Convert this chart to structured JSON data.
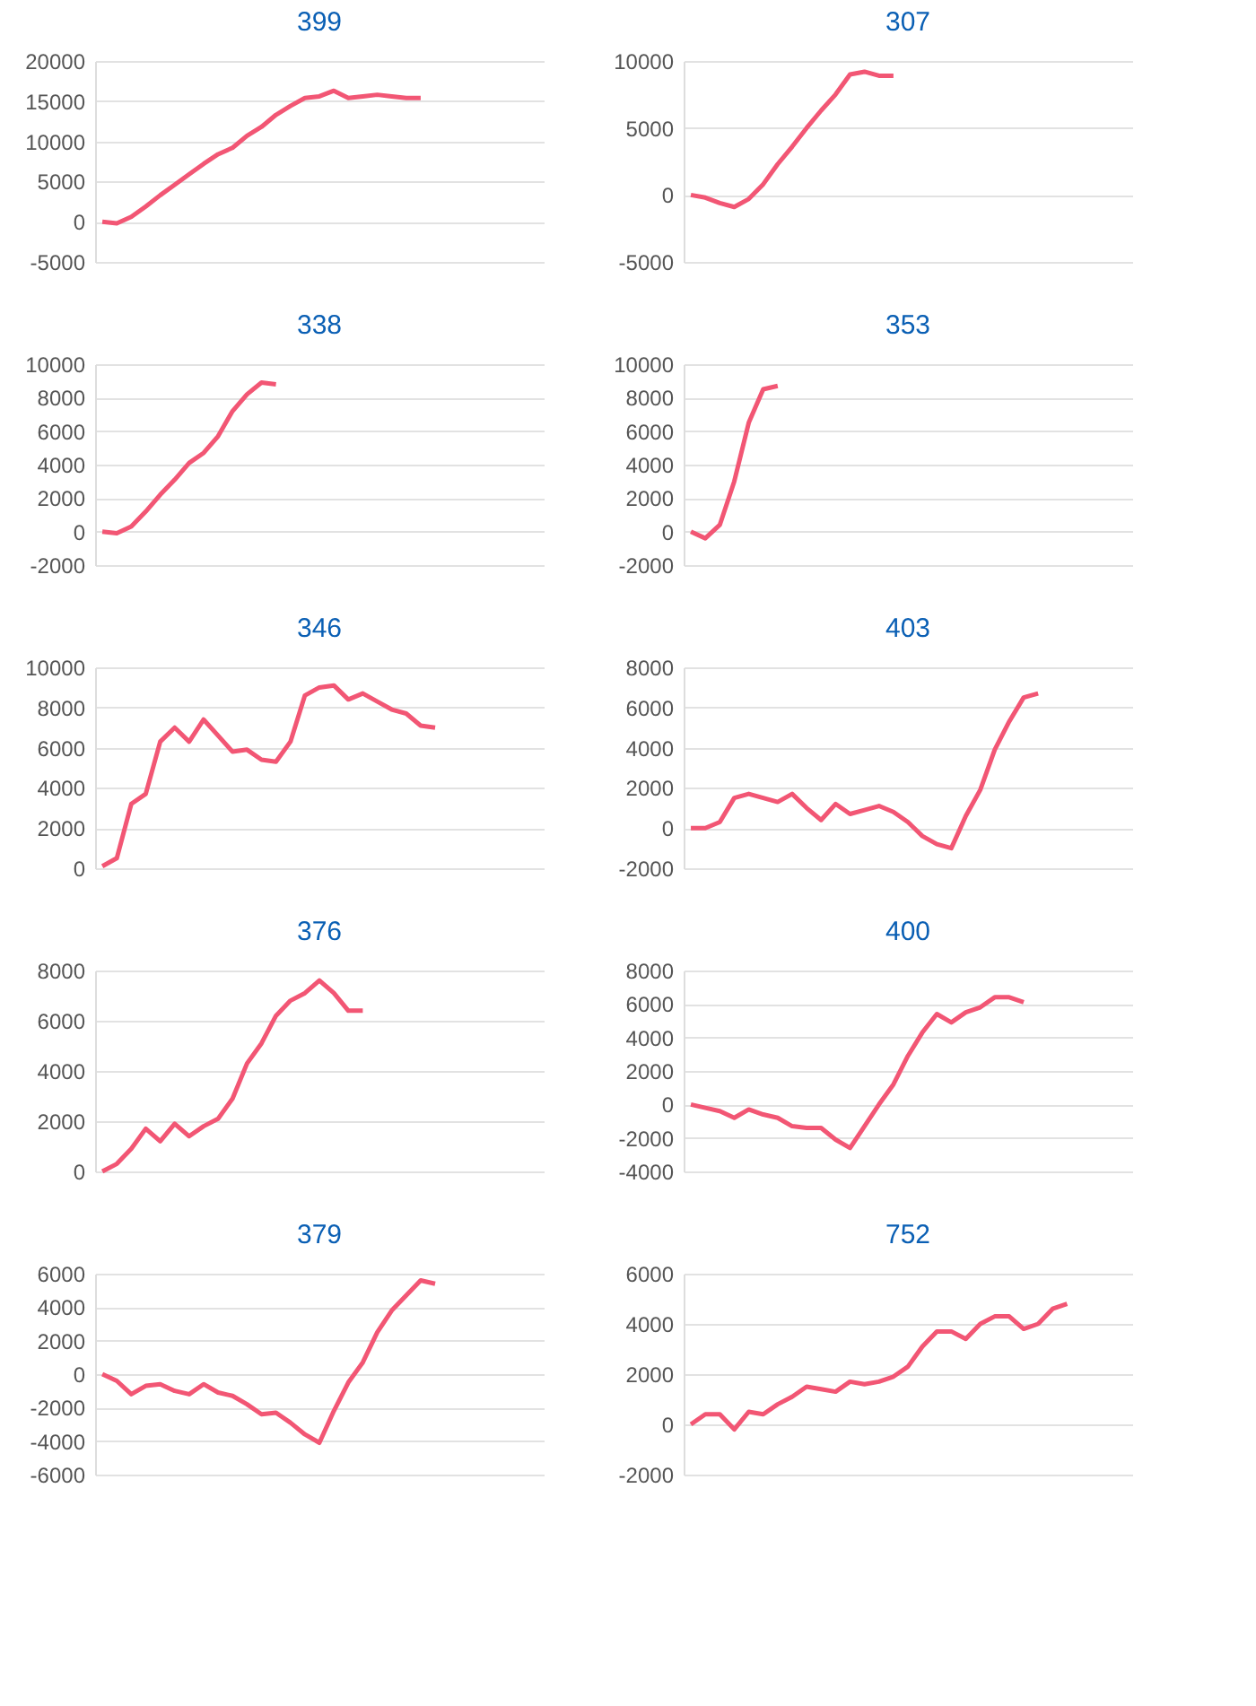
{
  "chart_data": [
    {
      "type": "line",
      "title": "399",
      "color": "#f25674",
      "grid": "y",
      "tick_labels": "y",
      "ylim": [
        -5000,
        20000
      ],
      "yticks": [
        -5000,
        0,
        5000,
        10000,
        15000,
        20000
      ],
      "categories": [
        null,
        null,
        null,
        null,
        null,
        null,
        null,
        null,
        null,
        null,
        null,
        null,
        null,
        null,
        null,
        null,
        null,
        null,
        null,
        null,
        null,
        null,
        null,
        null,
        null,
        null,
        null,
        null,
        null,
        null,
        null
      ],
      "values": [
        0,
        -200,
        600,
        1900,
        3300,
        4600,
        5900,
        7200,
        8400,
        9200,
        10700,
        11800,
        13300,
        14400,
        15400,
        15600,
        16300,
        15400,
        15600,
        15800,
        15600,
        15400,
        15400,
        null,
        null,
        null,
        null,
        null,
        null,
        null,
        null
      ]
    },
    {
      "type": "line",
      "title": "307",
      "color": "#f25674",
      "grid": "y",
      "tick_labels": "y",
      "ylim": [
        -5000,
        10000
      ],
      "yticks": [
        -5000,
        0,
        5000,
        10000
      ],
      "categories": [
        null,
        null,
        null,
        null,
        null,
        null,
        null,
        null,
        null,
        null,
        null,
        null,
        null,
        null,
        null,
        null,
        null,
        null,
        null,
        null,
        null,
        null,
        null,
        null,
        null,
        null,
        null,
        null,
        null,
        null,
        null
      ],
      "values": [
        0,
        -200,
        -600,
        -900,
        -300,
        800,
        2300,
        3600,
        5000,
        6300,
        7500,
        9000,
        9200,
        8900,
        8900,
        null,
        null,
        null,
        null,
        null,
        null,
        null,
        null,
        null,
        null,
        null,
        null,
        null,
        null,
        null,
        null
      ]
    },
    {
      "type": "line",
      "title": "338",
      "color": "#f25674",
      "grid": "y",
      "tick_labels": "y",
      "ylim": [
        -2000,
        10000
      ],
      "yticks": [
        -2000,
        0,
        2000,
        4000,
        6000,
        8000,
        10000
      ],
      "categories": [
        null,
        null,
        null,
        null,
        null,
        null,
        null,
        null,
        null,
        null,
        null,
        null,
        null,
        null,
        null,
        null,
        null,
        null,
        null,
        null,
        null,
        null,
        null,
        null,
        null,
        null,
        null,
        null,
        null,
        null,
        null
      ],
      "values": [
        0,
        -100,
        300,
        1200,
        2200,
        3100,
        4100,
        4700,
        5700,
        7200,
        8200,
        8900,
        8800,
        null,
        null,
        null,
        null,
        null,
        null,
        null,
        null,
        null,
        null,
        null,
        null,
        null,
        null,
        null,
        null,
        null,
        null
      ]
    },
    {
      "type": "line",
      "title": "353",
      "color": "#f25674",
      "grid": "y",
      "tick_labels": "y",
      "ylim": [
        -2000,
        10000
      ],
      "yticks": [
        -2000,
        0,
        2000,
        4000,
        6000,
        8000,
        10000
      ],
      "categories": [
        null,
        null,
        null,
        null,
        null,
        null,
        null,
        null,
        null,
        null,
        null,
        null,
        null,
        null,
        null,
        null,
        null,
        null,
        null,
        null,
        null,
        null,
        null,
        null,
        null,
        null,
        null,
        null,
        null,
        null,
        null
      ],
      "values": [
        0,
        -400,
        400,
        3000,
        6500,
        8500,
        8700,
        null,
        null,
        null,
        null,
        null,
        null,
        null,
        null,
        null,
        null,
        null,
        null,
        null,
        null,
        null,
        null,
        null,
        null,
        null,
        null,
        null,
        null,
        null,
        null
      ]
    },
    {
      "type": "line",
      "title": "346",
      "color": "#f25674",
      "grid": "y",
      "tick_labels": "y",
      "ylim": [
        0,
        10000
      ],
      "yticks": [
        0,
        2000,
        4000,
        6000,
        8000,
        10000
      ],
      "categories": [
        null,
        null,
        null,
        null,
        null,
        null,
        null,
        null,
        null,
        null,
        null,
        null,
        null,
        null,
        null,
        null,
        null,
        null,
        null,
        null,
        null,
        null,
        null,
        null,
        null,
        null,
        null,
        null,
        null,
        null,
        null
      ],
      "values": [
        100,
        500,
        3200,
        3700,
        6300,
        7000,
        6300,
        7400,
        6600,
        5800,
        5900,
        5400,
        5300,
        6300,
        8600,
        9000,
        9100,
        8400,
        8700,
        8300,
        7900,
        7700,
        7100,
        7000,
        null,
        null,
        null,
        null,
        null,
        null,
        null
      ]
    },
    {
      "type": "line",
      "title": "403",
      "color": "#f25674",
      "grid": "y",
      "tick_labels": "y",
      "ylim": [
        -2000,
        8000
      ],
      "yticks": [
        -2000,
        0,
        2000,
        4000,
        6000,
        8000
      ],
      "categories": [
        null,
        null,
        null,
        null,
        null,
        null,
        null,
        null,
        null,
        null,
        null,
        null,
        null,
        null,
        null,
        null,
        null,
        null,
        null,
        null,
        null,
        null,
        null,
        null,
        null,
        null,
        null,
        null,
        null,
        null,
        null
      ],
      "values": [
        0,
        0,
        300,
        1500,
        1700,
        1500,
        1300,
        1700,
        1000,
        400,
        1200,
        700,
        900,
        1100,
        800,
        300,
        -400,
        -800,
        -1000,
        600,
        1900,
        3900,
        5300,
        6500,
        6700,
        null,
        null,
        null,
        null,
        null,
        null
      ]
    },
    {
      "type": "line",
      "title": "376",
      "color": "#f25674",
      "grid": "y",
      "tick_labels": "y",
      "ylim": [
        0,
        8000
      ],
      "yticks": [
        0,
        2000,
        4000,
        6000,
        8000
      ],
      "categories": [
        null,
        null,
        null,
        null,
        null,
        null,
        null,
        null,
        null,
        null,
        null,
        null,
        null,
        null,
        null,
        null,
        null,
        null,
        null,
        null,
        null,
        null,
        null,
        null,
        null,
        null,
        null,
        null,
        null,
        null,
        null
      ],
      "values": [
        0,
        300,
        900,
        1700,
        1200,
        1900,
        1400,
        1800,
        2100,
        2900,
        4300,
        5100,
        6200,
        6800,
        7100,
        7600,
        7100,
        6400,
        6400,
        null,
        null,
        null,
        null,
        null,
        null,
        null,
        null,
        null,
        null,
        null,
        null
      ]
    },
    {
      "type": "line",
      "title": "400",
      "color": "#f25674",
      "grid": "y",
      "tick_labels": "y",
      "ylim": [
        -4000,
        8000
      ],
      "yticks": [
        -4000,
        -2000,
        0,
        2000,
        4000,
        6000,
        8000
      ],
      "categories": [
        null,
        null,
        null,
        null,
        null,
        null,
        null,
        null,
        null,
        null,
        null,
        null,
        null,
        null,
        null,
        null,
        null,
        null,
        null,
        null,
        null,
        null,
        null,
        null,
        null,
        null,
        null,
        null,
        null,
        null,
        null
      ],
      "values": [
        0,
        -200,
        -400,
        -800,
        -300,
        -600,
        -800,
        -1300,
        -1400,
        -1400,
        -2100,
        -2600,
        -1300,
        0,
        1200,
        2900,
        4300,
        5400,
        4900,
        5500,
        5800,
        6400,
        6400,
        6100,
        null,
        null,
        null,
        null,
        null,
        null,
        null
      ]
    },
    {
      "type": "line",
      "title": "379",
      "color": "#f25674",
      "grid": "y",
      "tick_labels": "y",
      "ylim": [
        -6000,
        6000
      ],
      "yticks": [
        -6000,
        -4000,
        -2000,
        0,
        2000,
        4000,
        6000
      ],
      "categories": [
        null,
        null,
        null,
        null,
        null,
        null,
        null,
        null,
        null,
        null,
        null,
        null,
        null,
        null,
        null,
        null,
        null,
        null,
        null,
        null,
        null,
        null,
        null,
        null,
        null,
        null,
        null,
        null,
        null,
        null,
        null
      ],
      "values": [
        0,
        -400,
        -1200,
        -700,
        -600,
        -1000,
        -1200,
        -600,
        -1100,
        -1300,
        -1800,
        -2400,
        -2300,
        -2900,
        -3600,
        -4100,
        -2200,
        -500,
        700,
        2500,
        3800,
        4700,
        5600,
        5400,
        null,
        null,
        null,
        null,
        null,
        null,
        null
      ]
    },
    {
      "type": "line",
      "title": "752",
      "color": "#f25674",
      "grid": "y",
      "tick_labels": "y",
      "ylim": [
        -2000,
        6000
      ],
      "yticks": [
        -2000,
        0,
        2000,
        4000,
        6000
      ],
      "categories": [
        null,
        null,
        null,
        null,
        null,
        null,
        null,
        null,
        null,
        null,
        null,
        null,
        null,
        null,
        null,
        null,
        null,
        null,
        null,
        null,
        null,
        null,
        null,
        null,
        null,
        null,
        null,
        null,
        null,
        null,
        null
      ],
      "values": [
        0,
        400,
        400,
        -200,
        500,
        400,
        800,
        1100,
        1500,
        1400,
        1300,
        1700,
        1600,
        1700,
        1900,
        2300,
        3100,
        3700,
        3700,
        3400,
        4000,
        4300,
        4300,
        3800,
        4000,
        4600,
        4800,
        null,
        null,
        null,
        null
      ]
    }
  ]
}
